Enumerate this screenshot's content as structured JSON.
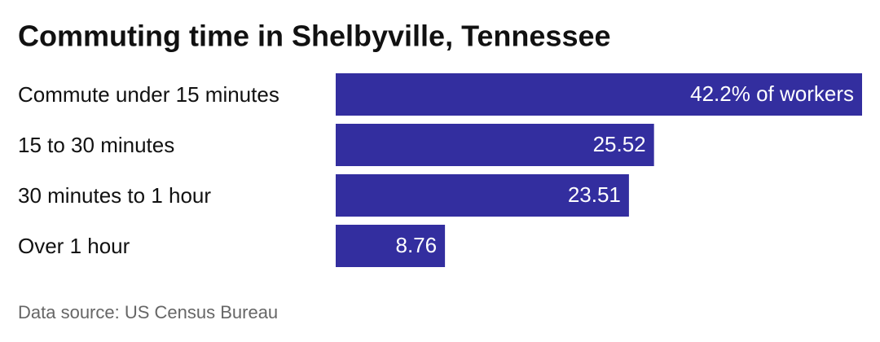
{
  "chart_data": {
    "type": "bar",
    "orientation": "horizontal",
    "title": "Commuting time in Shelbyville, Tennessee",
    "categories": [
      "Commute under 15 minutes",
      "15 to 30 minutes",
      "30 minutes to 1 hour",
      "Over 1 hour"
    ],
    "values": [
      42.2,
      25.52,
      23.51,
      8.76
    ],
    "value_labels": [
      "42.2% of workers",
      "25.52",
      "23.51",
      "8.76"
    ],
    "color": "#332e9f",
    "source": "Data source: US Census Bureau"
  }
}
